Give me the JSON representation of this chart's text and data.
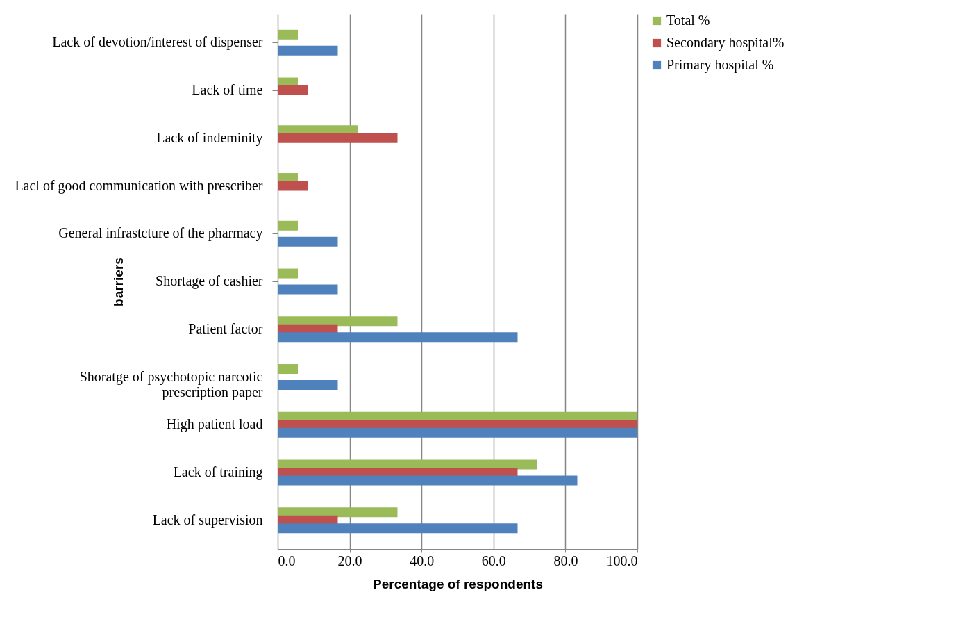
{
  "chart_data": {
    "type": "bar",
    "orientation": "horizontal",
    "xlabel": "Percentage of respondents",
    "ylabel": "barriers",
    "categories": [
      "Lack of devotion/interest of dispenser",
      "Lack of time",
      "Lack of indeminity",
      "Lacl of good communication with prescriber",
      "General infrastcture of the pharmacy",
      "Shortage of cashier",
      "Patient factor",
      "Shoratge of psychotopic narcotic prescription paper",
      "High patient load",
      "Lack of training",
      "Lack of supervision"
    ],
    "series": [
      {
        "name": "Total %",
        "color": "#9bbb59",
        "values": [
          5.6,
          5.6,
          22.2,
          5.6,
          5.6,
          5.6,
          33.3,
          5.6,
          100,
          72.2,
          33.3
        ]
      },
      {
        "name": "Secondary hospital%",
        "color": "#c0504d",
        "values": [
          0,
          8.3,
          33.3,
          8.3,
          0,
          0,
          16.7,
          0,
          100,
          66.7,
          16.7
        ]
      },
      {
        "name": "Primary hospital %",
        "color": "#4f81bd",
        "values": [
          16.7,
          0,
          0,
          0,
          16.7,
          16.7,
          66.7,
          16.7,
          100,
          83.3,
          66.7
        ]
      }
    ],
    "xlim": [
      0,
      100
    ],
    "xticks": [
      {
        "value": 0,
        "label": "0.0"
      },
      {
        "value": 20,
        "label": "20.0"
      },
      {
        "value": 40,
        "label": "40.0"
      },
      {
        "value": 60,
        "label": "60.0"
      },
      {
        "value": 80,
        "label": "80.0"
      },
      {
        "value": 100,
        "label": "100.0"
      }
    ],
    "grid": "x",
    "legend": "right"
  }
}
